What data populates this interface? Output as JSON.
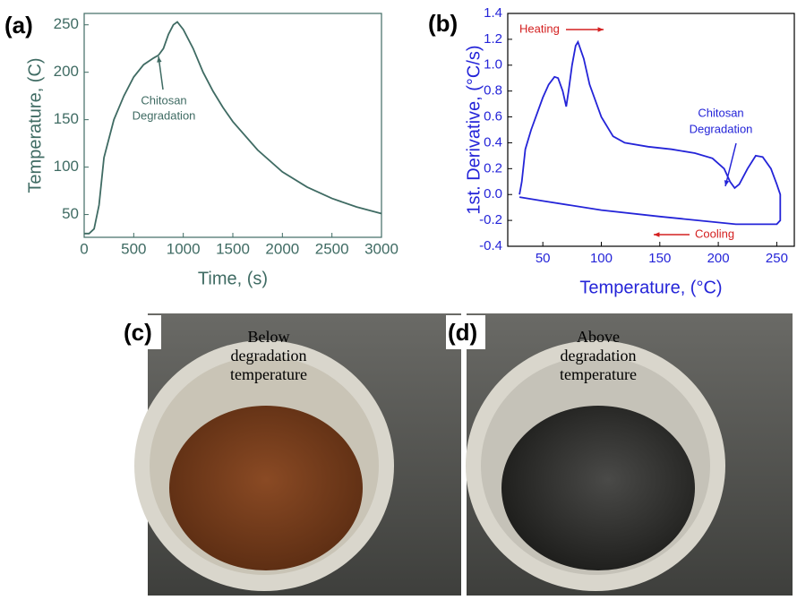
{
  "chart_data": [
    {
      "type": "line",
      "label": "(a)",
      "x_label": "Time, (s)",
      "y_label": "Temperature, (C)",
      "annotation": [
        "Chitosan",
        "Degradation"
      ],
      "x": [
        0,
        50,
        100,
        150,
        200,
        300,
        400,
        500,
        600,
        700,
        750,
        800,
        850,
        900,
        940,
        1000,
        1100,
        1200,
        1300,
        1400,
        1500,
        1750,
        2000,
        2250,
        2500,
        2750,
        3000
      ],
      "values": [
        30,
        30,
        35,
        60,
        110,
        150,
        175,
        195,
        208,
        215,
        218,
        225,
        240,
        250,
        253,
        245,
        225,
        200,
        180,
        163,
        148,
        118,
        95,
        79,
        67,
        58,
        51
      ],
      "color": "#3f6b63",
      "xlim": [
        0,
        3000
      ],
      "xticks": [
        0,
        500,
        1000,
        1500,
        2000,
        2500,
        3000
      ],
      "ylim": [
        26,
        262
      ],
      "yticks": [
        50,
        100,
        150,
        200,
        250
      ]
    },
    {
      "type": "line",
      "label": "(b)",
      "x_label": "Temperature, (°C)",
      "y_label": "1st. Derivative, (°C/s)",
      "annotation": [
        "Chitosan",
        "Degradation"
      ],
      "heating_label": "Heating",
      "cooling_label": "Cooling",
      "x": [
        30,
        32,
        35,
        40,
        50,
        55,
        60,
        63,
        67,
        70,
        72,
        75,
        78,
        80,
        85,
        90,
        100,
        110,
        120,
        140,
        160,
        180,
        195,
        205,
        210,
        214,
        218,
        225,
        232,
        238,
        245,
        250,
        253,
        253,
        250,
        215,
        150,
        100,
        50,
        30
      ],
      "values": [
        0,
        0.1,
        0.35,
        0.5,
        0.75,
        0.85,
        0.91,
        0.9,
        0.8,
        0.68,
        0.8,
        1.0,
        1.15,
        1.18,
        1.05,
        0.85,
        0.6,
        0.45,
        0.4,
        0.37,
        0.35,
        0.32,
        0.28,
        0.2,
        0.1,
        0.05,
        0.08,
        0.2,
        0.3,
        0.29,
        0.2,
        0.08,
        0.0,
        -0.2,
        -0.23,
        -0.23,
        -0.17,
        -0.12,
        -0.05,
        -0.02
      ],
      "color": "#2424d8",
      "xlim": [
        20,
        265
      ],
      "xticks": [
        50,
        100,
        150,
        200,
        250
      ],
      "ylim": [
        -0.4,
        1.4
      ],
      "yticks": [
        -0.4,
        -0.2,
        {
          "value": 0,
          "label": "0.0"
        },
        0.2,
        0.4,
        0.6,
        0.8,
        {
          "value": 1,
          "label": "1.0"
        },
        1.2,
        1.4
      ]
    }
  ],
  "photos": [
    {
      "label": "(c)",
      "caption": [
        "Below",
        "degradation",
        "temperature"
      ]
    },
    {
      "label": "(d)",
      "caption": [
        "Above",
        "degradation",
        "temperature"
      ]
    }
  ]
}
